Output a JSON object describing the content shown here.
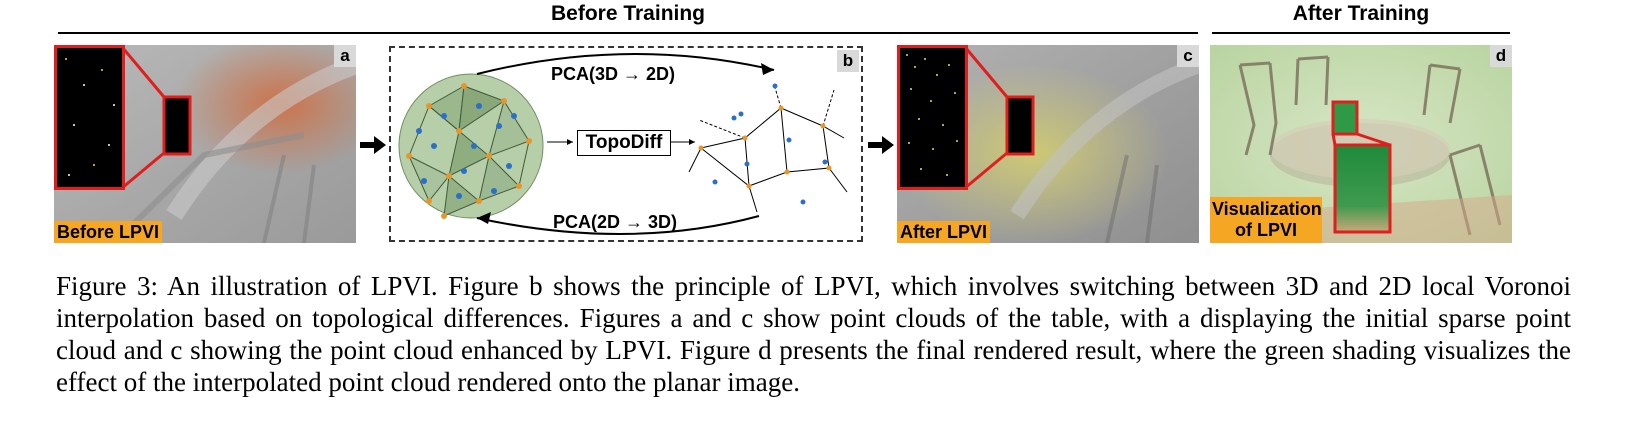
{
  "headers": {
    "before_training": "Before Training",
    "after_training": "After Training"
  },
  "panels": {
    "a": {
      "letter": "a",
      "label": "Before LPVI"
    },
    "b": {
      "letter": "b",
      "pca_top": "PCA(3D → 2D)",
      "pca_bottom": "PCA(2D → 3D)",
      "topodiff": "TopoDiff"
    },
    "c": {
      "letter": "c",
      "label": "After LPVI"
    },
    "d": {
      "letter": "d",
      "label_line1": "Visualization",
      "label_line2": "of LPVI"
    }
  },
  "caption": "Figure 3: An illustration of LPVI. Figure b shows the principle of LPVI, which involves switching between 3D and 2D local Voronoi interpolation based on topological differences. Figures a and c show point clouds of the table, with a displaying the initial sparse point cloud and c showing the point cloud enhanced by LPVI. Figure d presents the final rendered result, where the green shading visualizes the effect of the interpolated point cloud rendered onto the planar image.",
  "colors": {
    "accent_orange": "#f5a623",
    "zoom_red": "#e01e1e",
    "voronoi_orange": "#e8962a",
    "point_blue": "#2a6fc9"
  }
}
